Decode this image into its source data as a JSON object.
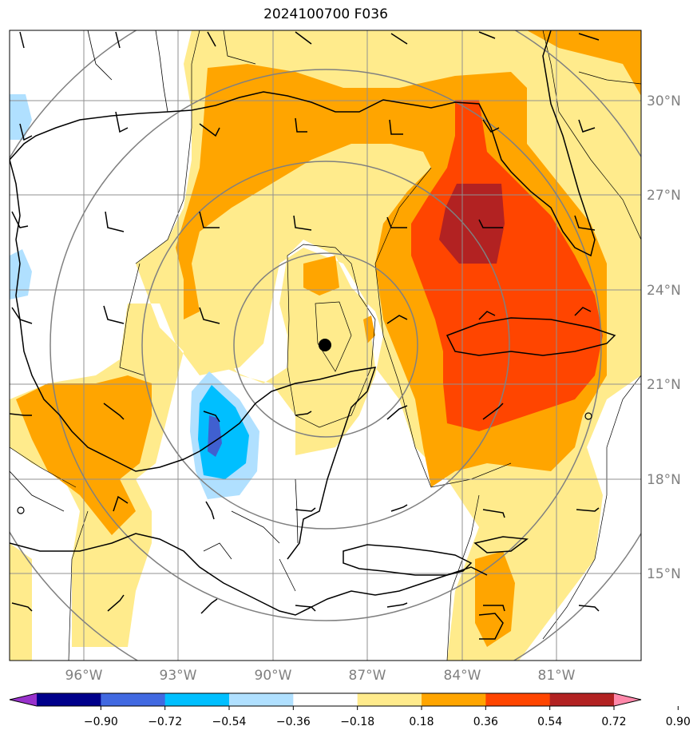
{
  "title": "2024100700 F036",
  "map": {
    "center_marker": {
      "lon": -88.4,
      "lat": 22.2
    },
    "lat_labels": [
      {
        "text": "30°N",
        "lat": 30
      },
      {
        "text": "27°N",
        "lat": 27
      },
      {
        "text": "24°N",
        "lat": 24
      },
      {
        "text": "21°N",
        "lat": 21
      },
      {
        "text": "18°N",
        "lat": 18
      },
      {
        "text": "15°N",
        "lat": 15
      }
    ],
    "lon_labels": [
      {
        "text": "96°W",
        "lon": -96
      },
      {
        "text": "93°W",
        "lon": -93
      },
      {
        "text": "90°W",
        "lon": -90
      },
      {
        "text": "87°W",
        "lon": -87
      },
      {
        "text": "84°W",
        "lon": -84
      },
      {
        "text": "81°W",
        "lon": -81
      }
    ],
    "range_rings": "concentric circles centered on storm",
    "contour_fill_colors": {
      "0.18-0.36": "#ffeb8c",
      "0.36-0.54": "#ffa500",
      "0.54-0.72": "#ff4500",
      "0.72-0.90": "#b22222",
      "-0.36--0.18": "#b0e0ff",
      "-0.54--0.36": "#00bfff",
      "-0.72--0.54": "#4060d0"
    }
  },
  "colorbar": {
    "ticks": [
      "−0.90",
      "−0.72",
      "−0.54",
      "−0.36",
      "−0.18",
      "0.18",
      "0.36",
      "0.54",
      "0.72",
      "0.90"
    ],
    "colors": [
      "#9932cc",
      "#00008b",
      "#4169e1",
      "#00bfff",
      "#b0e0ff",
      "#ffffff",
      "#ffeb8c",
      "#ffa500",
      "#ff4500",
      "#b22222",
      "#ff88aa"
    ]
  }
}
